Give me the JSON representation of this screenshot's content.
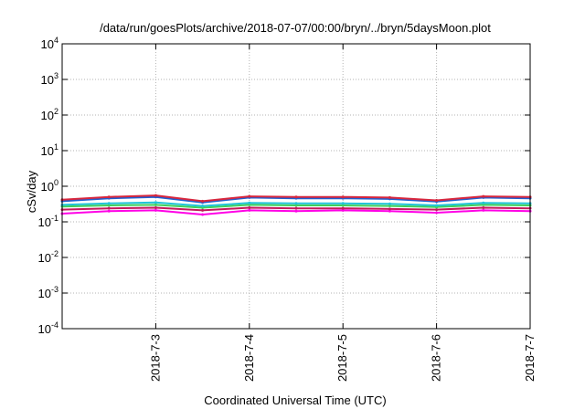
{
  "chart_data": {
    "type": "line",
    "title": "/data/run/goesPlots/archive/2018-07-07/00:00/bryn/../bryn/5daysMoon.plot",
    "xlabel": "Coordinated Universal Time (UTC)",
    "ylabel": "cSv/day",
    "xlim": [
      "2018-07-02",
      "2018-07-07"
    ],
    "ylim": [
      0.0001,
      10000
    ],
    "yscale": "log",
    "grid": true,
    "x_ticks": [
      "2018-7-3",
      "2018-7-4",
      "2018-7-5",
      "2018-7-6",
      "2018-7-7"
    ],
    "y_ticks": [
      {
        "base": "10",
        "exp": "-4"
      },
      {
        "base": "10",
        "exp": "-3"
      },
      {
        "base": "10",
        "exp": "-2"
      },
      {
        "base": "10",
        "exp": "-1"
      },
      {
        "base": "10",
        "exp": "0"
      },
      {
        "base": "10",
        "exp": "1"
      },
      {
        "base": "10",
        "exp": "2"
      },
      {
        "base": "10",
        "exp": "3"
      },
      {
        "base": "10",
        "exp": "4"
      }
    ],
    "x": [
      "2018-07-02",
      "2018-07-02 12:00",
      "2018-07-03",
      "2018-07-03 12:00",
      "2018-07-04",
      "2018-07-04 12:00",
      "2018-07-05",
      "2018-07-05 12:00",
      "2018-07-06",
      "2018-07-06 12:00",
      "2018-07-07"
    ],
    "series": [
      {
        "color": "#d7263d",
        "values": [
          0.42,
          0.5,
          0.55,
          0.38,
          0.52,
          0.5,
          0.5,
          0.48,
          0.4,
          0.52,
          0.5
        ]
      },
      {
        "color": "#1f5fd1",
        "values": [
          0.38,
          0.46,
          0.5,
          0.35,
          0.48,
          0.46,
          0.46,
          0.44,
          0.37,
          0.48,
          0.46
        ]
      },
      {
        "color": "#21c4d8",
        "values": [
          0.3,
          0.33,
          0.35,
          0.28,
          0.34,
          0.33,
          0.33,
          0.32,
          0.29,
          0.34,
          0.33
        ]
      },
      {
        "color": "#3fcf5a",
        "values": [
          0.27,
          0.29,
          0.3,
          0.25,
          0.3,
          0.29,
          0.29,
          0.28,
          0.26,
          0.3,
          0.29
        ]
      },
      {
        "color": "#c2185b",
        "values": [
          0.22,
          0.24,
          0.25,
          0.21,
          0.25,
          0.24,
          0.24,
          0.23,
          0.22,
          0.25,
          0.24
        ]
      },
      {
        "color": "#ff00e6",
        "values": [
          0.17,
          0.2,
          0.21,
          0.16,
          0.21,
          0.2,
          0.21,
          0.2,
          0.18,
          0.21,
          0.2
        ]
      }
    ]
  }
}
